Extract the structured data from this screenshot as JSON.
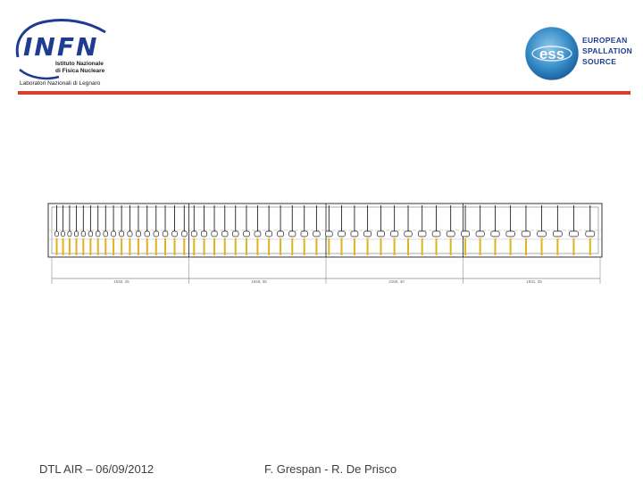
{
  "left_logo": {
    "word": "INFN",
    "line1": "Istituto Nazionale",
    "line2": "di Fisica Nucleare",
    "lab": "Laboratori Nazionali di Legnaro",
    "accent": "#1f3c93"
  },
  "right_logo": {
    "mark": "ess",
    "lines": [
      "EUROPEAN",
      "SPALLATION",
      "SOURCE"
    ],
    "accent": "#1f3c93"
  },
  "rule_color": "#d63f2c",
  "drawing": {
    "section_count": 4,
    "tube_count": 48,
    "support_color": "#e3b21b",
    "dimension_labels": [
      "1540, 25",
      "1848, 35",
      "2150, 40",
      "1931, 25"
    ]
  },
  "footer": {
    "date": "DTL AIR – 06/09/2012",
    "authors": "F. Grespan - R. De Prisco"
  }
}
